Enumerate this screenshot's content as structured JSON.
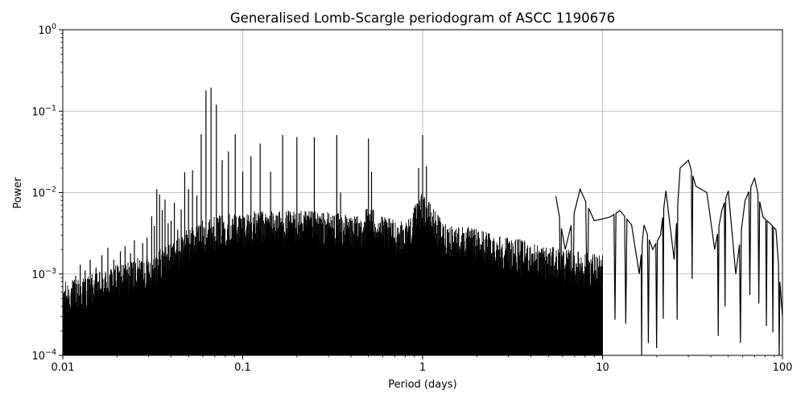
{
  "chart_data": {
    "type": "line",
    "title": "Generalised Lomb-Scargle periodogram of ASCC 1190676",
    "xlabel": "Period (days)",
    "ylabel": "Power",
    "xscale": "log",
    "yscale": "log",
    "xlim": [
      0.01,
      100
    ],
    "ylim": [
      0.0001,
      1
    ],
    "grid": true,
    "line_color": "#000000",
    "x_ticks": [
      {
        "value": 0.01,
        "label": "0.01"
      },
      {
        "value": 0.1,
        "label": "0.1"
      },
      {
        "value": 1,
        "label": "1"
      },
      {
        "value": 10,
        "label": "10"
      },
      {
        "value": 100,
        "label": "100"
      }
    ],
    "y_ticks": [
      {
        "value": 0.0001,
        "base": "10",
        "exp": "−4"
      },
      {
        "value": 0.001,
        "base": "10",
        "exp": "−3"
      },
      {
        "value": 0.01,
        "base": "10",
        "exp": "−2"
      },
      {
        "value": 0.1,
        "base": "10",
        "exp": "−1"
      },
      {
        "value": 1,
        "base": "10",
        "exp": "0"
      }
    ],
    "series": [
      {
        "peaks": [
          [
            0.0118,
            0.00095
          ],
          [
            0.0125,
            0.0013
          ],
          [
            0.0133,
            0.0011
          ],
          [
            0.0142,
            0.0015
          ],
          [
            0.0153,
            0.0012
          ],
          [
            0.0165,
            0.0017
          ],
          [
            0.0178,
            0.0021
          ],
          [
            0.0192,
            0.0015
          ],
          [
            0.0209,
            0.0019
          ],
          [
            0.0222,
            0.0022
          ],
          [
            0.0238,
            0.0018
          ],
          [
            0.025,
            0.0026
          ],
          [
            0.0278,
            0.0024
          ],
          [
            0.0294,
            0.0028
          ],
          [
            0.0312,
            0.0051
          ],
          [
            0.0323,
            0.0039
          ],
          [
            0.0333,
            0.011
          ],
          [
            0.0345,
            0.0095
          ],
          [
            0.0357,
            0.0061
          ],
          [
            0.037,
            0.0082
          ],
          [
            0.0385,
            0.0042
          ],
          [
            0.04,
            0.0045
          ],
          [
            0.0417,
            0.0075
          ],
          [
            0.0435,
            0.0035
          ],
          [
            0.0455,
            0.0062
          ],
          [
            0.0476,
            0.0178
          ],
          [
            0.05,
            0.011
          ],
          [
            0.0526,
            0.0188
          ],
          [
            0.0556,
            0.0092
          ],
          [
            0.0588,
            0.052
          ],
          [
            0.0625,
            0.18
          ],
          [
            0.0667,
            0.195
          ],
          [
            0.0714,
            0.12
          ],
          [
            0.0769,
            0.025
          ],
          [
            0.0833,
            0.032
          ],
          [
            0.0909,
            0.052
          ],
          [
            0.1,
            0.018
          ],
          [
            0.1111,
            0.028
          ],
          [
            0.125,
            0.04
          ],
          [
            0.1429,
            0.018
          ],
          [
            0.1667,
            0.051
          ],
          [
            0.2,
            0.048
          ],
          [
            0.25,
            0.048
          ],
          [
            0.3333,
            0.051
          ],
          [
            0.35,
            0.01
          ],
          [
            0.5,
            0.046
          ],
          [
            0.52,
            0.018
          ],
          [
            0.95,
            0.02
          ],
          [
            1.0,
            0.051
          ],
          [
            1.05,
            0.021
          ]
        ],
        "envelope": [
          [
            0.01,
            0.00055
          ],
          [
            0.015,
            0.0007
          ],
          [
            0.02,
            0.0009
          ],
          [
            0.03,
            0.0012
          ],
          [
            0.04,
            0.0017
          ],
          [
            0.05,
            0.0025
          ],
          [
            0.06,
            0.0032
          ],
          [
            0.08,
            0.0038
          ],
          [
            0.1,
            0.004
          ],
          [
            0.15,
            0.0042
          ],
          [
            0.2,
            0.0042
          ],
          [
            0.3,
            0.004
          ],
          [
            0.45,
            0.0035
          ],
          [
            0.5,
            0.005
          ],
          [
            0.6,
            0.0035
          ],
          [
            0.8,
            0.003
          ],
          [
            1.0,
            0.007
          ],
          [
            1.3,
            0.003
          ],
          [
            2.0,
            0.0025
          ],
          [
            3.0,
            0.002
          ],
          [
            5.0,
            0.0015
          ],
          [
            10,
            0.0012
          ]
        ],
        "smooth_features": [
          [
            5.5,
            0.009
          ],
          [
            6.2,
            0.002
          ],
          [
            7.5,
            0.011
          ],
          [
            9.0,
            0.0045
          ],
          [
            11,
            0.005
          ],
          [
            12.5,
            0.006
          ],
          [
            14.5,
            0.004
          ],
          [
            16,
            0.001
          ],
          [
            17,
            0.004
          ],
          [
            19,
            0.002
          ],
          [
            21,
            0.003
          ],
          [
            22.5,
            0.0105
          ],
          [
            25,
            0.0015
          ],
          [
            27,
            0.02
          ],
          [
            30,
            0.025
          ],
          [
            33,
            0.012
          ],
          [
            38,
            0.01
          ],
          [
            42,
            0.002
          ],
          [
            46,
            0.006
          ],
          [
            50,
            0.0105
          ],
          [
            55,
            0.001
          ],
          [
            62,
            0.008
          ],
          [
            70,
            0.015
          ],
          [
            78,
            0.005
          ],
          [
            85,
            0.0042
          ],
          [
            92,
            0.0035
          ],
          [
            100,
            0.0003
          ]
        ]
      }
    ]
  }
}
